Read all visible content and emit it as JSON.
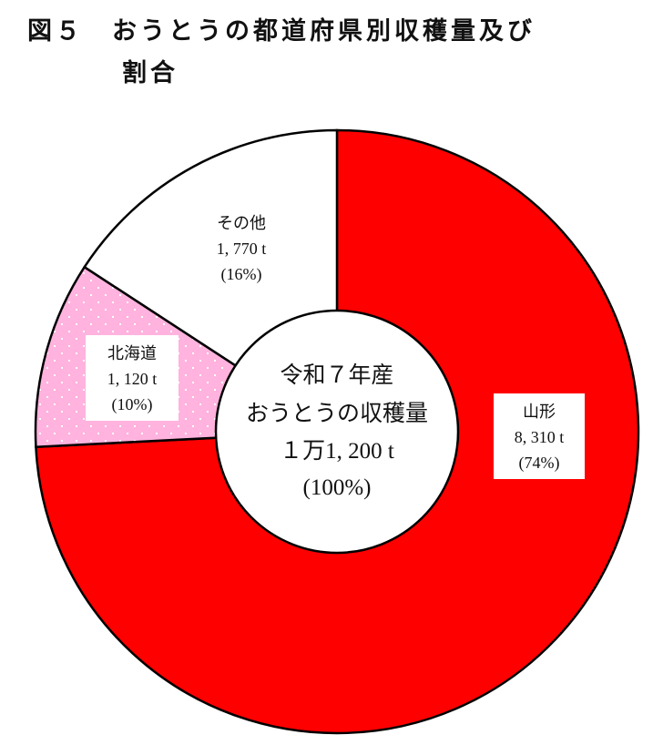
{
  "title": {
    "line1": "図５　おうとうの都道府県別収穫量及び",
    "line2": "割合"
  },
  "chart_data": {
    "type": "pie",
    "donut": true,
    "start": "12 o'clock, clockwise",
    "slices": [
      {
        "name": "山形",
        "value": 8310,
        "value_label": "8, 310 t",
        "percent_label": "(74%)",
        "color": "#FF0000",
        "pattern": "none"
      },
      {
        "name": "北海道",
        "value": 1120,
        "value_label": "1, 120 t",
        "percent_label": "(10%)",
        "color": "#FFB3DE",
        "pattern": "white-dots"
      },
      {
        "name": "その他",
        "value": 1770,
        "value_label": "1, 770 t",
        "percent_label": "(16%)",
        "color": "#FFFFFF",
        "pattern": "none"
      }
    ],
    "center_label": [
      "令和７年産",
      "おうとうの収穫量",
      "１万1, 200 t",
      "(100%)"
    ]
  }
}
